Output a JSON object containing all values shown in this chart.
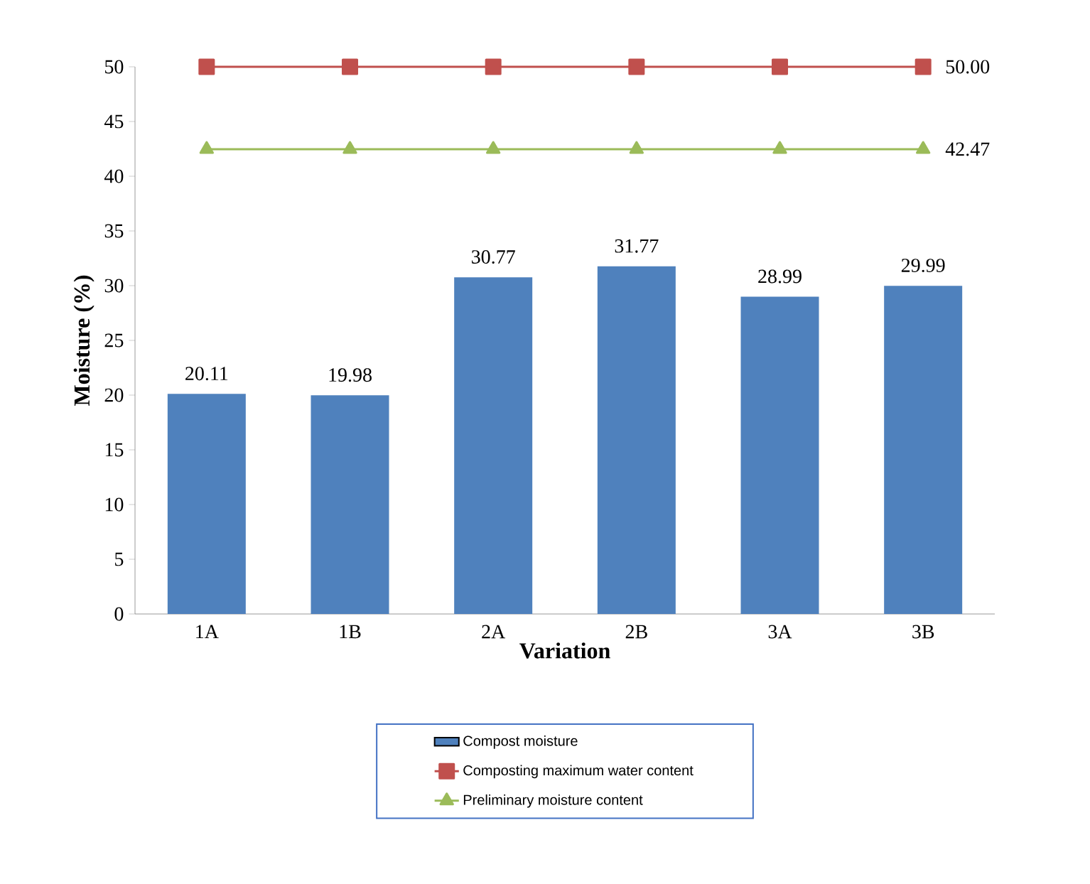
{
  "chart_data": {
    "type": "bar",
    "xlabel": "Variation",
    "ylabel": "Moisture (%)",
    "categories": [
      "1A",
      "1B",
      "2A",
      "2B",
      "3A",
      "3B"
    ],
    "ylim": [
      0,
      50
    ],
    "yticks": [
      0,
      5,
      10,
      15,
      20,
      25,
      30,
      35,
      40,
      45,
      50
    ],
    "legend": "bottom",
    "series": [
      {
        "name": "Compost moisture",
        "color": "#4f81bd",
        "values": [
          20.11,
          19.98,
          30.77,
          31.77,
          28.99,
          29.99
        ],
        "value_labels": [
          "20.11",
          "19.98",
          "30.77",
          "31.77",
          "28.99",
          "29.99"
        ]
      },
      {
        "name": "Composting maximum water content",
        "type": "line",
        "color": "#c0504d",
        "marker": "square",
        "values": [
          50,
          50,
          50,
          50,
          50,
          50
        ],
        "value_labels": [
          null,
          null,
          null,
          null,
          null,
          "50.00"
        ]
      },
      {
        "name": "Preliminary moisture content",
        "type": "line",
        "color": "#9bbb59",
        "marker": "triangle",
        "values": [
          42.47,
          42.47,
          42.47,
          42.47,
          42.47,
          42.47
        ],
        "value_labels": [
          null,
          null,
          null,
          null,
          null,
          "42.47"
        ]
      }
    ]
  }
}
